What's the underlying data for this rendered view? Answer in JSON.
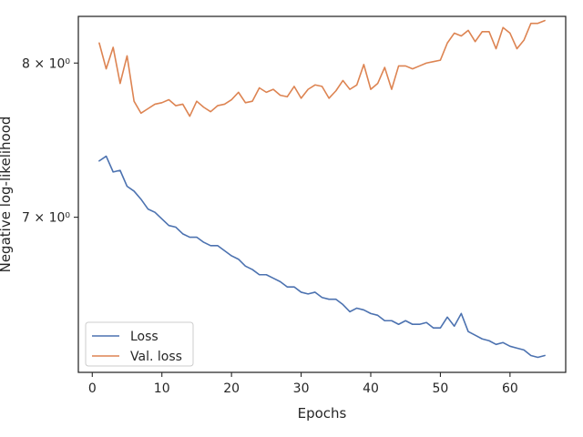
{
  "chart_data": {
    "type": "line",
    "title": "",
    "xlabel": "Epochs",
    "ylabel": "Negative log-likelihood",
    "yscale": "log",
    "xlim": [
      -2,
      68
    ],
    "ylim": [
      6.12,
      8.33
    ],
    "xticks": [
      0,
      10,
      20,
      30,
      40,
      50,
      60
    ],
    "xtick_labels": [
      "0",
      "10",
      "20",
      "30",
      "40",
      "50",
      "60"
    ],
    "yticks": [
      7,
      8
    ],
    "ytick_labels": [
      "7 × 10⁰",
      "8 × 10⁰"
    ],
    "grid": false,
    "legend_position": "lower-left",
    "x": [
      1,
      2,
      3,
      4,
      5,
      6,
      7,
      8,
      9,
      10,
      11,
      12,
      13,
      14,
      15,
      16,
      17,
      18,
      19,
      20,
      21,
      22,
      23,
      24,
      25,
      26,
      27,
      28,
      29,
      30,
      31,
      32,
      33,
      34,
      35,
      36,
      37,
      38,
      39,
      40,
      41,
      42,
      43,
      44,
      45,
      46,
      47,
      48,
      49,
      50,
      51,
      52,
      53,
      54,
      55,
      56,
      57,
      58,
      59,
      60,
      61,
      62,
      63,
      64,
      65
    ],
    "series": [
      {
        "name": "Loss",
        "color": "#4c72b0",
        "values": [
          7.35,
          7.38,
          7.28,
          7.29,
          7.19,
          7.16,
          7.11,
          7.05,
          7.03,
          6.99,
          6.95,
          6.94,
          6.9,
          6.88,
          6.88,
          6.85,
          6.83,
          6.83,
          6.8,
          6.77,
          6.75,
          6.71,
          6.69,
          6.66,
          6.66,
          6.64,
          6.62,
          6.59,
          6.59,
          6.56,
          6.55,
          6.56,
          6.53,
          6.52,
          6.52,
          6.49,
          6.45,
          6.47,
          6.46,
          6.44,
          6.43,
          6.4,
          6.4,
          6.38,
          6.4,
          6.38,
          6.38,
          6.39,
          6.36,
          6.36,
          6.42,
          6.37,
          6.44,
          6.34,
          6.32,
          6.3,
          6.29,
          6.27,
          6.28,
          6.26,
          6.25,
          6.24,
          6.21,
          6.2,
          6.21
        ]
      },
      {
        "name": "Val. loss",
        "color": "#dd8452",
        "values": [
          8.14,
          7.96,
          8.11,
          7.86,
          8.05,
          7.74,
          7.66,
          7.69,
          7.72,
          7.73,
          7.75,
          7.71,
          7.72,
          7.64,
          7.74,
          7.7,
          7.67,
          7.71,
          7.72,
          7.75,
          7.8,
          7.73,
          7.74,
          7.83,
          7.8,
          7.82,
          7.78,
          7.77,
          7.84,
          7.76,
          7.82,
          7.85,
          7.84,
          7.76,
          7.81,
          7.88,
          7.82,
          7.85,
          7.99,
          7.82,
          7.86,
          7.97,
          7.82,
          7.98,
          7.98,
          7.96,
          7.98,
          8.0,
          8.01,
          8.02,
          8.14,
          8.21,
          8.19,
          8.23,
          8.15,
          8.22,
          8.22,
          8.1,
          8.25,
          8.21,
          8.1,
          8.16,
          8.28,
          8.28,
          8.3
        ]
      }
    ]
  }
}
